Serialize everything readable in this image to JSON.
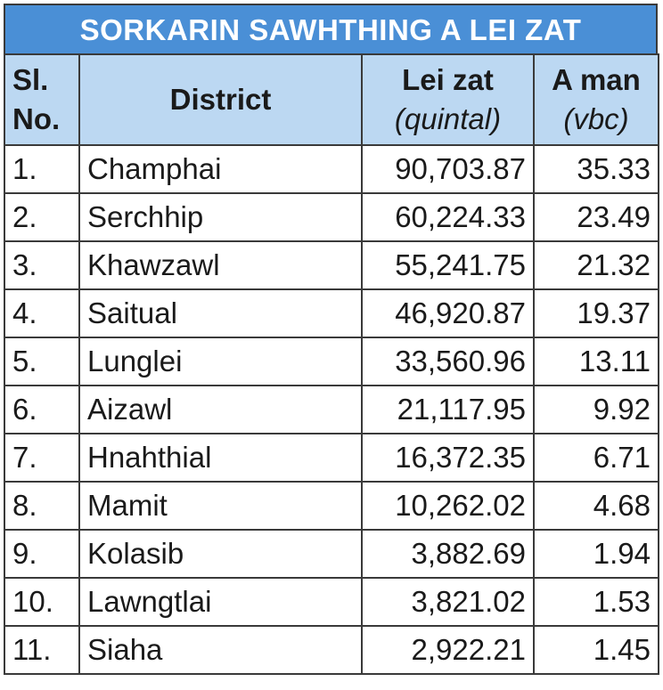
{
  "table": {
    "title": "SORKARIN SAWHTHING A LEI ZAT",
    "header": [
      [
        "Sl.",
        "No."
      ],
      [
        "District"
      ],
      [
        "Lei zat",
        "(quintal)"
      ],
      [
        "A man",
        "(vbc)"
      ]
    ],
    "rows": [
      [
        "1.",
        "Champhai",
        "90,703.87",
        "35.33"
      ],
      [
        "2.",
        "Serchhip",
        "60,224.33",
        "23.49"
      ],
      [
        "3.",
        "Khawzawl",
        "55,241.75",
        "21.32"
      ],
      [
        "4.",
        "Saitual",
        "46,920.87",
        "19.37"
      ],
      [
        "5.",
        "Lunglei",
        "33,560.96",
        "13.11"
      ],
      [
        "6.",
        "Aizawl",
        "21,117.95",
        "9.92"
      ],
      [
        "7.",
        "Hnahthial",
        "16,372.35",
        "6.71"
      ],
      [
        "8.",
        "Mamit",
        "10,262.02",
        "4.68"
      ],
      [
        "9.",
        "Kolasib",
        "3,882.69",
        "1.94"
      ],
      [
        "10.",
        "Lawngtlai",
        "3,821.02",
        "1.53"
      ],
      [
        "11.",
        "Siaha",
        "2,922.21",
        "1.45"
      ]
    ]
  }
}
